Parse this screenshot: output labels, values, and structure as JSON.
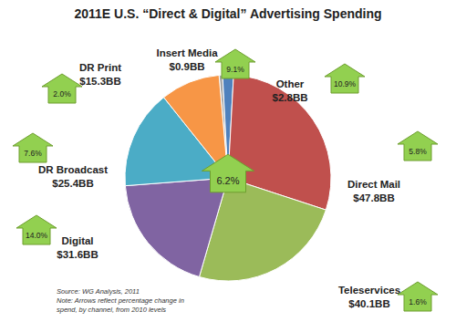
{
  "chart_data": {
    "type": "pie",
    "title": "2011E U.S. “Direct & Digital” Advertising Spending",
    "categories": [
      "Insert Media",
      "Other",
      "Direct Mail",
      "Teleservices",
      "Digital",
      "DR Broadcast",
      "DR Print"
    ],
    "values": [
      0.9,
      2.8,
      47.8,
      40.1,
      31.6,
      25.4,
      15.3
    ],
    "value_labels": [
      "$0.9BB",
      "$2.8BB",
      "$47.8BB",
      "$40.1BB",
      "$31.6BB",
      "$25.4BB",
      "$15.3BB"
    ],
    "colors": [
      "#A6A6A6",
      "#4F81BD",
      "#C0504D",
      "#9BBB59",
      "#8064A2",
      "#4BACC6",
      "#F79646"
    ],
    "growth": [
      9.1,
      10.9,
      5.8,
      1.6,
      14.0,
      7.6,
      2.0
    ],
    "growth_labels": [
      "9.1%",
      "10.9%",
      "5.8%",
      "1.6%",
      "14.0%",
      "7.6%",
      "2.0%"
    ],
    "total_growth": 6.2,
    "total_growth_label": "6.2%",
    "data_labels": true,
    "annotations": [
      "Source: WG Analysis, 2011",
      "Note: Arrows reflect percentage change in spend, by channel, from 2010 levels"
    ]
  }
}
